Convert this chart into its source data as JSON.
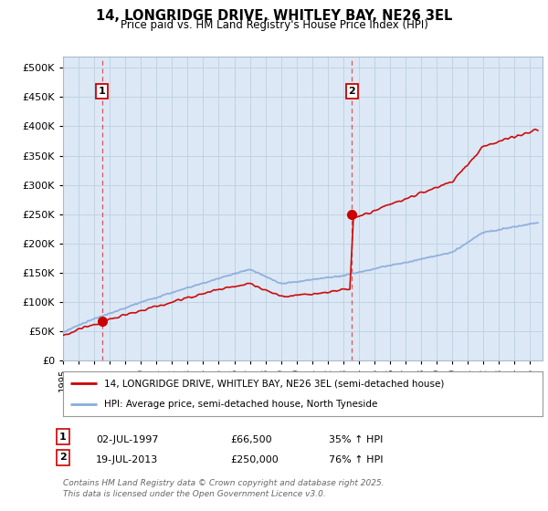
{
  "title_line1": "14, LONGRIDGE DRIVE, WHITLEY BAY, NE26 3EL",
  "title_line2": "Price paid vs. HM Land Registry's House Price Index (HPI)",
  "legend_property": "14, LONGRIDGE DRIVE, WHITLEY BAY, NE26 3EL (semi-detached house)",
  "legend_hpi": "HPI: Average price, semi-detached house, North Tyneside",
  "annotation1_label": "1",
  "annotation1_date": "02-JUL-1997",
  "annotation1_price": "£66,500",
  "annotation1_hpi": "35% ↑ HPI",
  "annotation2_label": "2",
  "annotation2_date": "19-JUL-2013",
  "annotation2_price": "£250,000",
  "annotation2_hpi": "76% ↑ HPI",
  "footnote": "Contains HM Land Registry data © Crown copyright and database right 2025.\nThis data is licensed under the Open Government Licence v3.0.",
  "property_color": "#cc0000",
  "hpi_color": "#88aadd",
  "plot_bg_color": "#dce8f5",
  "grid_color": "#bccfdf",
  "ylim": [
    0,
    520000
  ],
  "yticks": [
    0,
    50000,
    100000,
    150000,
    200000,
    250000,
    300000,
    350000,
    400000,
    450000,
    500000
  ],
  "sale1_x": 1997.5,
  "sale1_y": 66500,
  "sale2_x": 2013.55,
  "sale2_y": 250000,
  "xmin": 1995,
  "xmax": 2025.8,
  "vline1_x": 1997.5,
  "vline2_x": 2013.55
}
